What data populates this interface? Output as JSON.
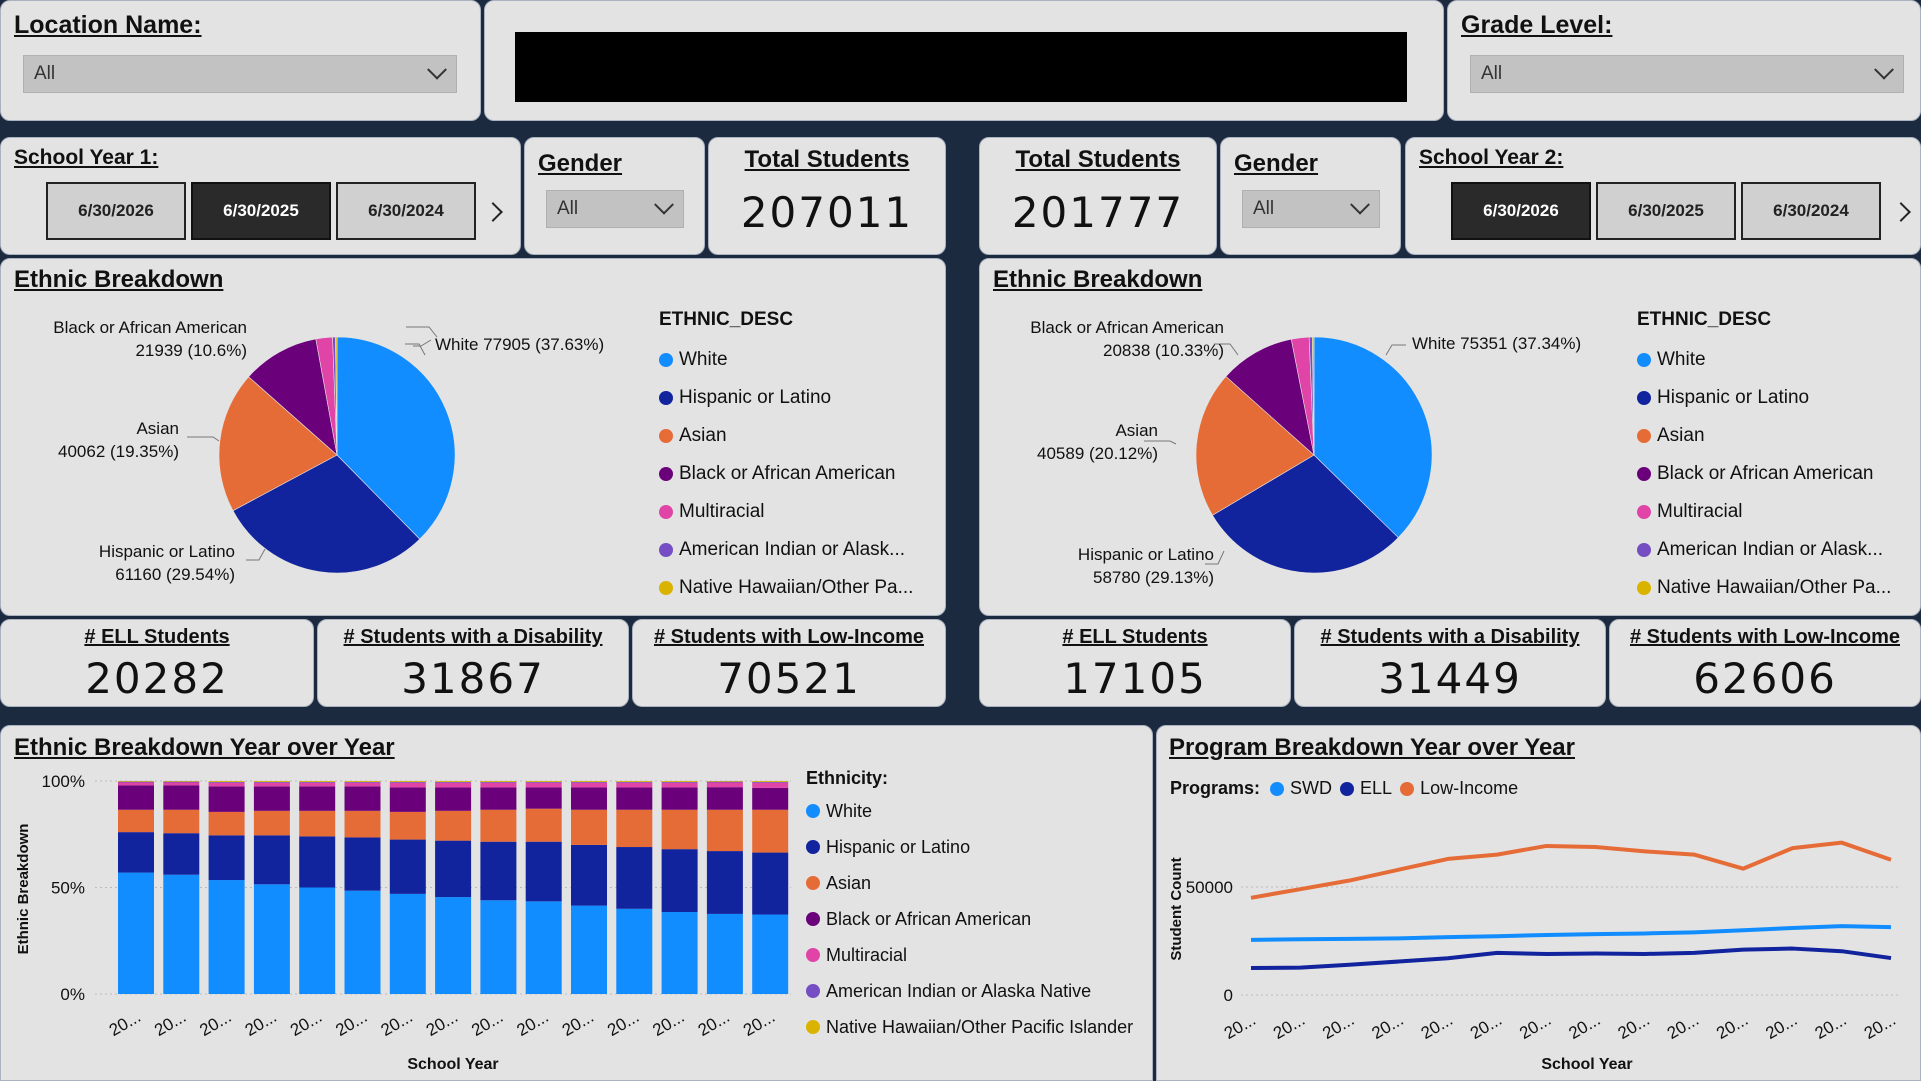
{
  "filters": {
    "location": {
      "label": "Location Name:",
      "value": "All"
    },
    "grade": {
      "label": "Grade Level:",
      "value": "All"
    }
  },
  "left": {
    "year_label": "School Year 1:",
    "years": [
      "6/30/2026",
      "6/30/2025",
      "6/30/2024"
    ],
    "selected_year": "6/30/2025",
    "gender": {
      "label": "Gender",
      "value": "All"
    },
    "total": {
      "label": "Total Students",
      "value": "207011"
    },
    "ethnic_title": "Ethnic Breakdown",
    "pie_labels": {
      "white": "White 77905 (37.63%)",
      "black_1": "Black or African American",
      "black_2": "21939 (10.6%)",
      "asian_1": "Asian",
      "asian_2": "40062 (19.35%)",
      "hisp_1": "Hispanic or Latino",
      "hisp_2": "61160 (29.54%)"
    },
    "kpis": [
      {
        "label": "# ELL Students",
        "value": "20282"
      },
      {
        "label": "# Students with a Disability",
        "value": "31867"
      },
      {
        "label": "# Students with Low-Income",
        "value": "70521"
      }
    ]
  },
  "right": {
    "year_label": "School Year 2:",
    "years": [
      "6/30/2026",
      "6/30/2025",
      "6/30/2024"
    ],
    "selected_year": "6/30/2026",
    "gender": {
      "label": "Gender",
      "value": "All"
    },
    "total": {
      "label": "Total Students",
      "value": "201777"
    },
    "ethnic_title": "Ethnic Breakdown",
    "pie_labels": {
      "white": "White 75351 (37.34%)",
      "black_1": "Black or African American",
      "black_2": "20838 (10.33%)",
      "asian_1": "Asian",
      "asian_2": "40589 (20.12%)",
      "hisp_1": "Hispanic or Latino",
      "hisp_2": "58780 (29.13%)"
    },
    "kpis": [
      {
        "label": "# ELL Students",
        "value": "17105"
      },
      {
        "label": "# Students with a Disability",
        "value": "31449"
      },
      {
        "label": "# Students with Low-Income",
        "value": "62606"
      }
    ]
  },
  "pie_legend": {
    "title": "ETHNIC_DESC",
    "items": [
      "White",
      "Hispanic or Latino",
      "Asian",
      "Black or African American",
      "Multiracial",
      "American Indian or Alask...",
      "Native Hawaiian/Other Pa..."
    ]
  },
  "colors": {
    "white": "#118dff",
    "hispanic": "#12239e",
    "asian": "#e66c37",
    "black": "#6b007b",
    "multiracial": "#e044a7",
    "american_indian": "#744ec2",
    "native_hawaiian": "#d9b300"
  },
  "bottom_left": {
    "title": "Ethnic Breakdown Year over Year",
    "legend_title": "Ethnicity:",
    "legend_items": [
      "White",
      "Hispanic or Latino",
      "Asian",
      "Black or African American",
      "Multiracial",
      "American Indian or Alaska Native",
      "Native Hawaiian/Other Pacific Islander"
    ]
  },
  "bottom_right": {
    "title": "Program Breakdown Year over Year",
    "legend_title": "Programs:"
  },
  "chart_data": [
    {
      "type": "pie",
      "categories": [
        "White",
        "Hispanic or Latino",
        "Asian",
        "Black or African American",
        "Multiracial",
        "American Indian or Alaska Native",
        "Native Hawaiian/Other Pacific Islander"
      ],
      "values": [
        77905,
        61160,
        40062,
        21939,
        4700,
        800,
        445
      ]
    },
    {
      "type": "pie",
      "categories": [
        "White",
        "Hispanic or Latino",
        "Asian",
        "Black or African American",
        "Multiracial",
        "American Indian or Alaska Native",
        "Native Hawaiian/Other Pacific Islander"
      ],
      "values": [
        75351,
        58780,
        40589,
        20838,
        4900,
        850,
        469
      ]
    },
    {
      "type": "bar",
      "stacked": true,
      "title": "Ethnic Breakdown Year over Year",
      "xlabel": "School Year",
      "ylabel": "Ethnic Breakdown",
      "ylim": [
        0,
        1
      ],
      "yticks": [
        "0%",
        "50%",
        "100%"
      ],
      "categories": [
        "20...",
        "20...",
        "20...",
        "20...",
        "20...",
        "20...",
        "20...",
        "20...",
        "20...",
        "20...",
        "20...",
        "20...",
        "20...",
        "20...",
        "20..."
      ],
      "series": [
        {
          "name": "White",
          "values": [
            0.57,
            0.56,
            0.535,
            0.515,
            0.5,
            0.485,
            0.47,
            0.455,
            0.44,
            0.435,
            0.415,
            0.4,
            0.385,
            0.376,
            0.373
          ]
        },
        {
          "name": "Hispanic or Latino",
          "values": [
            0.19,
            0.195,
            0.21,
            0.23,
            0.24,
            0.25,
            0.255,
            0.265,
            0.275,
            0.28,
            0.285,
            0.29,
            0.295,
            0.295,
            0.291
          ]
        },
        {
          "name": "Asian",
          "values": [
            0.105,
            0.11,
            0.11,
            0.115,
            0.12,
            0.125,
            0.13,
            0.14,
            0.15,
            0.155,
            0.165,
            0.175,
            0.185,
            0.194,
            0.201
          ]
        },
        {
          "name": "Black or African American",
          "values": [
            0.115,
            0.115,
            0.12,
            0.115,
            0.115,
            0.115,
            0.115,
            0.11,
            0.105,
            0.1,
            0.105,
            0.105,
            0.105,
            0.106,
            0.103
          ]
        },
        {
          "name": "Multiracial",
          "values": [
            0.013,
            0.013,
            0.017,
            0.017,
            0.017,
            0.017,
            0.022,
            0.022,
            0.022,
            0.022,
            0.022,
            0.022,
            0.022,
            0.022,
            0.024
          ]
        },
        {
          "name": "American Indian or Alaska Native",
          "values": [
            0.004,
            0.004,
            0.004,
            0.004,
            0.004,
            0.004,
            0.004,
            0.004,
            0.004,
            0.004,
            0.004,
            0.004,
            0.004,
            0.004,
            0.004
          ]
        },
        {
          "name": "Native Hawaiian/Other Pacific Islander",
          "values": [
            0.003,
            0.003,
            0.004,
            0.004,
            0.004,
            0.004,
            0.004,
            0.004,
            0.004,
            0.004,
            0.004,
            0.004,
            0.004,
            0.003,
            0.004
          ]
        }
      ]
    },
    {
      "type": "line",
      "title": "Program Breakdown Year over Year",
      "xlabel": "School Year",
      "ylabel": "Student Count",
      "ylim": [
        0,
        80000
      ],
      "yticks": [
        0,
        50000
      ],
      "categories": [
        "20...",
        "20...",
        "20...",
        "20...",
        "20...",
        "20...",
        "20...",
        "20...",
        "20...",
        "20...",
        "20...",
        "20...",
        "20...",
        "20..."
      ],
      "series": [
        {
          "name": "SWD",
          "values": [
            25500,
            25800,
            26000,
            26200,
            26800,
            27200,
            27800,
            28200,
            28500,
            29000,
            30000,
            31000,
            31867,
            31449
          ]
        },
        {
          "name": "ELL",
          "values": [
            12500,
            12700,
            14000,
            15500,
            17000,
            19500,
            19000,
            19200,
            19000,
            19500,
            21000,
            21500,
            20282,
            17105
          ]
        },
        {
          "name": "Low-Income",
          "values": [
            45000,
            49000,
            53000,
            58000,
            63000,
            65000,
            69000,
            68500,
            66500,
            65000,
            58500,
            68000,
            70521,
            62606
          ]
        }
      ]
    }
  ]
}
